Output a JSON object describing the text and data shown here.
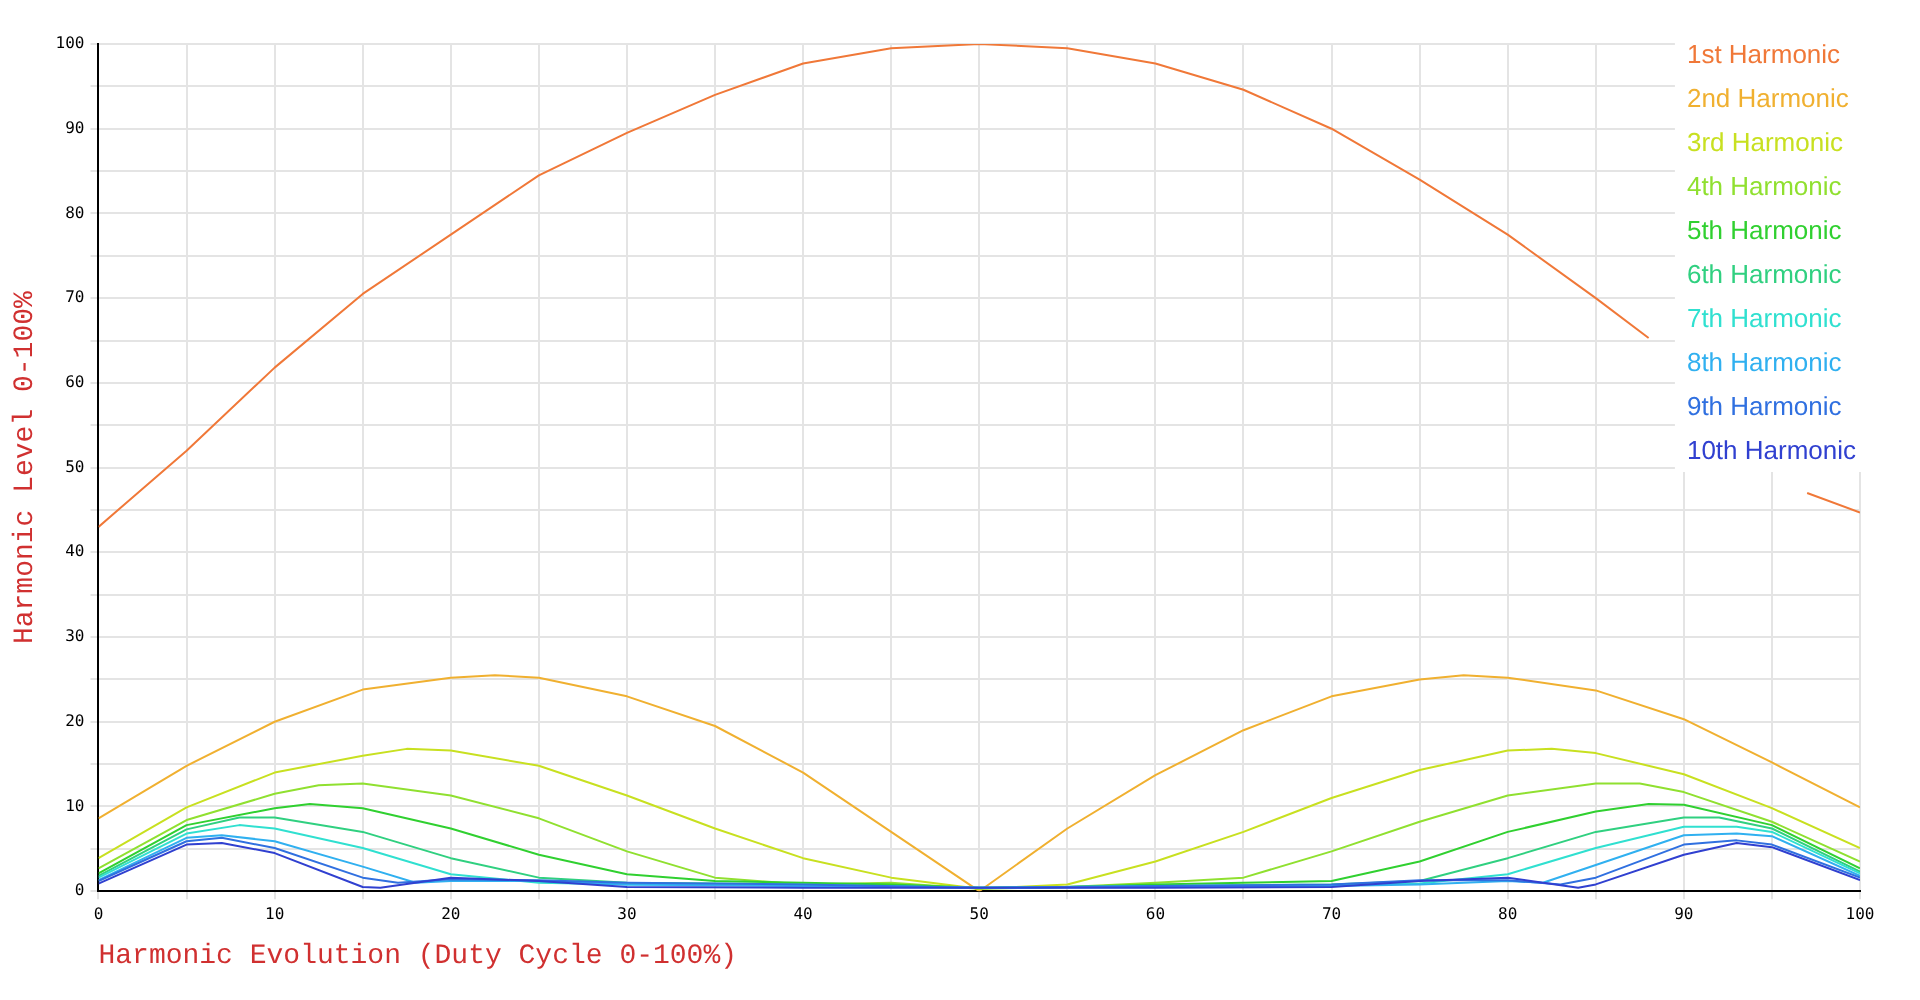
{
  "chart_data": {
    "type": "line",
    "xlabel": "Harmonic Evolution (Duty Cycle 0-100%)",
    "ylabel": "Harmonic Level 0-100%",
    "xlim": [
      0,
      100
    ],
    "ylim": [
      0,
      100
    ],
    "xticks": [
      0,
      {
        "value": 5,
        "label": null
      },
      10,
      {
        "value": 15,
        "label": null
      },
      20,
      {
        "value": 25,
        "label": null
      },
      30,
      {
        "value": 35,
        "label": null
      },
      40,
      {
        "value": 45,
        "label": null
      },
      50,
      {
        "value": 55,
        "label": null
      },
      60,
      {
        "value": 65,
        "label": null
      },
      70,
      {
        "value": 75,
        "label": null
      },
      80,
      {
        "value": 85,
        "label": null
      },
      90,
      {
        "value": 95,
        "label": null
      },
      100
    ],
    "yticks": [
      0,
      {
        "value": 5,
        "label": null
      },
      10,
      {
        "value": 15,
        "label": null
      },
      20,
      {
        "value": 25,
        "label": null
      },
      30,
      {
        "value": 35,
        "label": null
      },
      40,
      {
        "value": 45,
        "label": null
      },
      50,
      {
        "value": 55,
        "label": null
      },
      60,
      {
        "value": 65,
        "label": null
      },
      70,
      {
        "value": 75,
        "label": null
      },
      80,
      {
        "value": 85,
        "label": null
      },
      90,
      {
        "value": 95,
        "label": null
      },
      100
    ],
    "grid": true,
    "legend": "top right",
    "series": [
      {
        "name": "1st Harmonic",
        "color": "#f07838",
        "x": [
          0,
          5,
          10,
          15,
          20,
          25,
          30,
          35,
          40,
          45,
          50,
          55,
          60,
          65,
          70,
          75,
          80,
          85,
          88,
          90,
          95,
          97,
          100
        ],
        "values": [
          43,
          52,
          61.8,
          70.5,
          77.5,
          84.5,
          89.5,
          94,
          97.7,
          99.5,
          100,
          99.5,
          97.7,
          94.6,
          90,
          84,
          77.5,
          70,
          65.3,
          null,
          null,
          47,
          44.7
        ]
      },
      {
        "name": "2nd Harmonic",
        "color": "#f0b030",
        "x": [
          0,
          5,
          10,
          15,
          20,
          22.5,
          25,
          30,
          35,
          40,
          45,
          50,
          55,
          60,
          65,
          70,
          75,
          77.5,
          80,
          85,
          90,
          95,
          100
        ],
        "values": [
          8.6,
          14.8,
          20,
          23.8,
          25.2,
          25.5,
          25.2,
          23,
          19.5,
          14,
          7,
          0,
          7.4,
          13.7,
          19,
          23,
          25,
          25.5,
          25.2,
          23.7,
          20.3,
          15.2,
          9.9
        ]
      },
      {
        "name": "3rd Harmonic",
        "color": "#c8e020",
        "x": [
          0,
          5,
          10,
          15,
          17.5,
          20,
          25,
          30,
          35,
          40,
          45,
          50,
          55,
          60,
          65,
          70,
          75,
          80,
          82.5,
          85,
          90,
          95,
          100
        ],
        "values": [
          3.9,
          9.9,
          14,
          16,
          16.8,
          16.6,
          14.8,
          11.3,
          7.4,
          3.9,
          1.6,
          0.3,
          0.8,
          3.5,
          7,
          11,
          14.3,
          16.6,
          16.8,
          16.3,
          13.8,
          9.8,
          5.1
        ]
      },
      {
        "name": "4th Harmonic",
        "color": "#90e030",
        "x": [
          0,
          5,
          10,
          12.5,
          15,
          20,
          25,
          30,
          35,
          40,
          45,
          50,
          55,
          60,
          65,
          70,
          75,
          80,
          85,
          87.5,
          90,
          95,
          100
        ],
        "values": [
          2.7,
          8.4,
          11.5,
          12.5,
          12.7,
          11.3,
          8.6,
          4.7,
          1.6,
          0.8,
          1,
          0.3,
          0.5,
          1,
          1.6,
          4.7,
          8.2,
          11.3,
          12.7,
          12.7,
          11.7,
          8.2,
          3.5
        ]
      },
      {
        "name": "5th Harmonic",
        "color": "#30d030",
        "x": [
          0,
          5,
          10,
          12,
          15,
          20,
          25,
          30,
          35,
          40,
          45,
          50,
          55,
          60,
          65,
          70,
          75,
          80,
          85,
          88,
          90,
          95,
          100
        ],
        "values": [
          2.1,
          7.8,
          9.8,
          10.3,
          9.8,
          7.4,
          4.3,
          2,
          1.2,
          1,
          0.8,
          0.4,
          0.5,
          0.8,
          1,
          1.2,
          3.5,
          7,
          9.4,
          10.3,
          10.2,
          7.8,
          2.7
        ]
      },
      {
        "name": "6th Harmonic",
        "color": "#30d080",
        "x": [
          0,
          5,
          8,
          10,
          15,
          20,
          25,
          30,
          40,
          50,
          60,
          70,
          75,
          80,
          85,
          90,
          92,
          95,
          100
        ],
        "values": [
          1.8,
          7.3,
          8.7,
          8.7,
          7,
          3.9,
          1.6,
          1,
          0.8,
          0.4,
          0.6,
          0.8,
          1.2,
          3.9,
          7,
          8.7,
          8.7,
          7.4,
          2.3
        ]
      },
      {
        "name": "7th Harmonic",
        "color": "#30e0d0",
        "x": [
          0,
          5,
          8,
          10,
          15,
          20,
          25,
          30,
          40,
          50,
          60,
          70,
          75,
          80,
          85,
          90,
          93,
          95,
          100
        ],
        "values": [
          1.6,
          6.8,
          7.8,
          7.4,
          5.1,
          2,
          1,
          0.8,
          0.7,
          0.4,
          0.6,
          0.7,
          0.9,
          2,
          5.1,
          7.6,
          7.6,
          7,
          2.1
        ]
      },
      {
        "name": "8th Harmonic",
        "color": "#30b0f0",
        "x": [
          0,
          5,
          7,
          10,
          15,
          18,
          20,
          25,
          30,
          50,
          70,
          75,
          80,
          82,
          85,
          90,
          93,
          95,
          100
        ],
        "values": [
          1.3,
          6.3,
          6.6,
          5.9,
          2.9,
          1,
          1.2,
          1.2,
          0.8,
          0.4,
          0.6,
          0.8,
          1.2,
          1,
          3.1,
          6.6,
          6.8,
          6.5,
          1.8
        ]
      },
      {
        "name": "9th Harmonic",
        "color": "#3070e0",
        "x": [
          0,
          5,
          7,
          10,
          15,
          17,
          20,
          25,
          30,
          40,
          50,
          60,
          70,
          75,
          80,
          83,
          85,
          90,
          93,
          95,
          100
        ],
        "values": [
          1.2,
          5.9,
          6.3,
          5.1,
          1.6,
          1,
          1.4,
          1.3,
          1,
          0.8,
          0.4,
          0.6,
          0.8,
          1.3,
          1.3,
          0.8,
          1.6,
          5.5,
          6,
          5.5,
          1.6
        ]
      },
      {
        "name": "10th Harmonic",
        "color": "#3040d0",
        "x": [
          0,
          5,
          7,
          10,
          15,
          16,
          20,
          25,
          30,
          40,
          50,
          60,
          70,
          75,
          80,
          84,
          85,
          90,
          93,
          95,
          100
        ],
        "values": [
          0.9,
          5.5,
          5.7,
          4.5,
          0.5,
          0.4,
          1.6,
          1.2,
          0.5,
          0.4,
          0.4,
          0.4,
          0.5,
          1.2,
          1.6,
          0.4,
          0.8,
          4.3,
          5.7,
          5.2,
          1.3
        ]
      }
    ]
  }
}
